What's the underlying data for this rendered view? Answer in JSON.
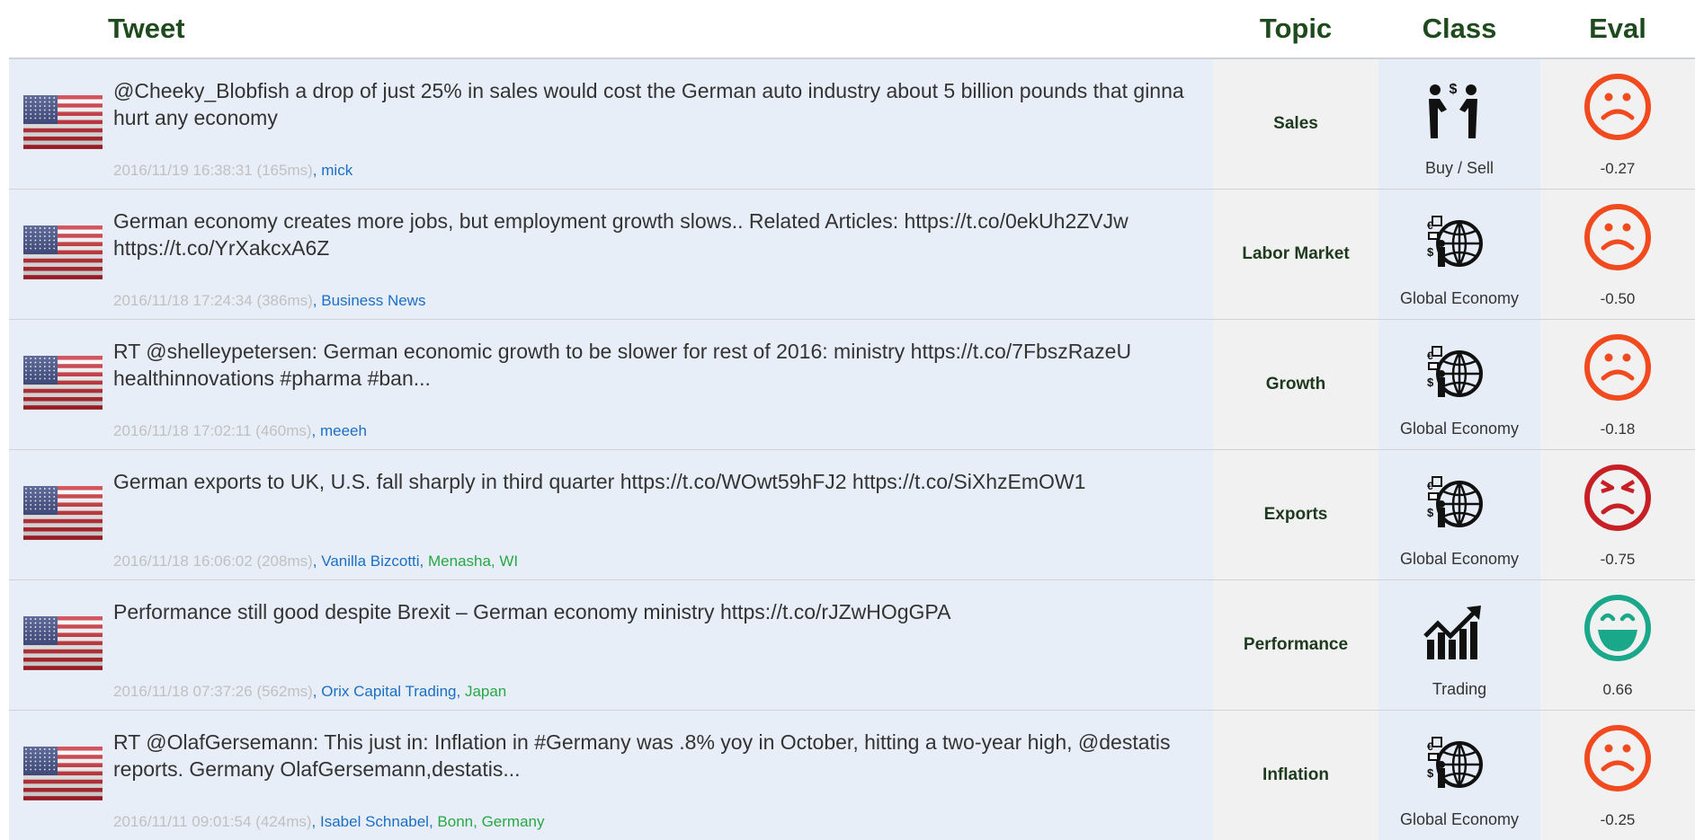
{
  "header": {
    "tweet": "Tweet",
    "topic": "Topic",
    "class": "Class",
    "eval": "Eval"
  },
  "rows": [
    {
      "text": "@Cheeky_Blobfish a drop of just 25% in sales would cost the German auto industry about 5 billion pounds that ginna hurt any economy",
      "time": "2016/11/19 16:38:31 (165ms)",
      "user": "mick",
      "topic": "Sales",
      "class": "Buy / Sell",
      "class_icon": "buy-sell",
      "eval": "-0.27",
      "face": "sad"
    },
    {
      "text": "German economy creates more jobs, but employment growth slows.. Related Articles: https://t.co/0ekUh2ZVJw https://t.co/YrXakcxA6Z",
      "time": "2016/11/18 17:24:34 (386ms)",
      "user": "Business News",
      "topic": "Labor Market",
      "class": "Global Economy",
      "class_icon": "global",
      "eval": "-0.50",
      "face": "sad"
    },
    {
      "text": "RT @shelleypetersen: German economic growth to be slower for rest of 2016: ministry https://t.co/7FbszRazeU healthinnovations #pharma #ban...",
      "time": "2016/11/18 17:02:11 (460ms)",
      "user": "meeeh",
      "topic": "Growth",
      "class": "Global Economy",
      "class_icon": "global",
      "eval": "-0.18",
      "face": "sad"
    },
    {
      "text": "German exports to UK, U.S. fall sharply in third quarter https://t.co/WOwt59hFJ2 https://t.co/SiXhzEmOW1",
      "time": "2016/11/18 16:06:02 (208ms)",
      "user": "Vanilla Bizcotti",
      "location": "Menasha, WI",
      "topic": "Exports",
      "class": "Global Economy",
      "class_icon": "global",
      "eval": "-0.75",
      "face": "angry"
    },
    {
      "text": "Performance still good despite Brexit – German economy ministry https://t.co/rJZwHOgGPA",
      "time": "2016/11/18 07:37:26 (562ms)",
      "user": "Orix Capital Trading",
      "location": "Japan",
      "topic": "Performance",
      "class": "Trading",
      "class_icon": "trading",
      "eval": "0.66",
      "face": "happy"
    },
    {
      "text": "RT @OlafGersemann: This just in: Inflation in #Germany was .8% yoy in October, hitting a two-year high, @destatis reports. Germany OlafGersemann,destatis...",
      "time": "2016/11/11 09:01:54 (424ms)",
      "user": "Isabel Schnabel",
      "location": "Bonn, Germany",
      "topic": "Inflation",
      "class": "Global Economy",
      "class_icon": "global",
      "eval": "-0.25",
      "face": "sad"
    }
  ]
}
